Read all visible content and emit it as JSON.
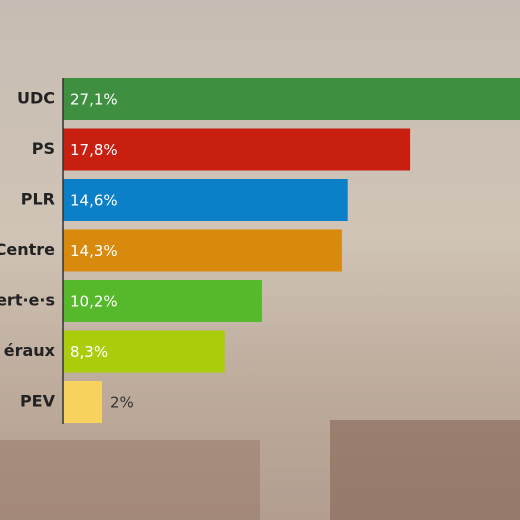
{
  "chart_data": {
    "type": "bar",
    "orientation": "horizontal",
    "categories": [
      "UDC",
      "PS",
      "PLR",
      "Centre",
      "ert·e·s",
      "éraux",
      "PEV"
    ],
    "values": [
      27.1,
      17.8,
      14.6,
      14.3,
      10.2,
      8.3,
      2
    ],
    "value_labels": [
      "27,1%",
      "17,8%",
      "14,6%",
      "14,3%",
      "10,2%",
      "8,3%",
      "2%"
    ],
    "colors": [
      "#3f8f40",
      "#c81f10",
      "#0b80c9",
      "#d88a0c",
      "#56b82b",
      "#a9cc0b",
      "#f8d25f"
    ]
  }
}
